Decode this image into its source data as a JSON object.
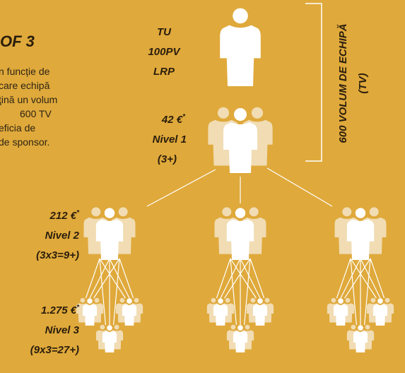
{
  "title": "OF 3",
  "paragraph": [
    "n funcție de",
    "care echipă",
    "ţină un volum",
    "600 TV",
    "eficia de",
    "de sponsor."
  ],
  "you": {
    "lines": [
      "TU",
      "100PV",
      "LRP"
    ]
  },
  "levels": [
    {
      "amount": "42 €",
      "note": "*",
      "name": "Nivel 1",
      "count": "(3+)"
    },
    {
      "amount": "212 €",
      "note": "*",
      "name": "Nivel 2",
      "count": "(3x3=9+)"
    },
    {
      "amount": "1.275 €",
      "note": "*",
      "name": "Nivel 3",
      "count": "(9x3=27+)"
    }
  ],
  "team_volume": {
    "label": "600 VOLUM DE ECHIPĂ",
    "unit": "(TV)"
  }
}
